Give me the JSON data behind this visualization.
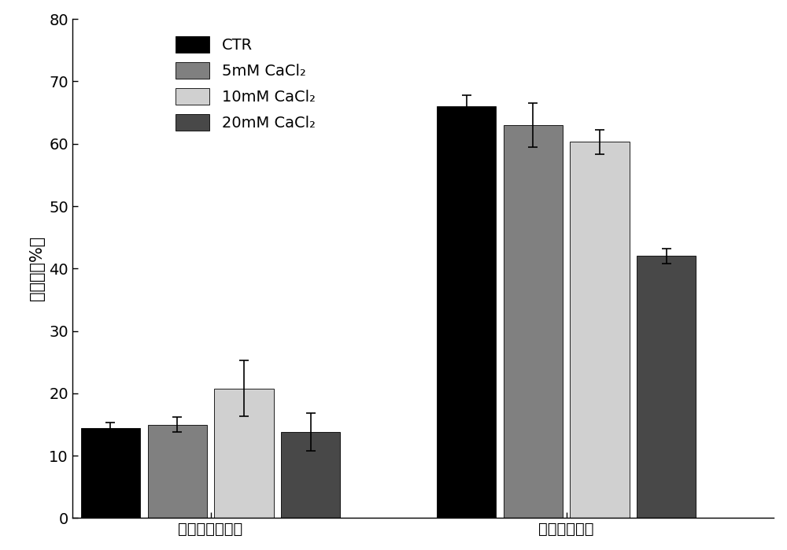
{
  "groups": [
    "未改性绿豆蛋白",
    "改性绿豆蛋白"
  ],
  "series": [
    "CTR",
    "5mM CaCl₂",
    "10mM CaCl₂",
    "20mM CaCl₂"
  ],
  "colors": [
    "#000000",
    "#808080",
    "#d0d0d0",
    "#484848"
  ],
  "values": [
    [
      14.5,
      15.0,
      20.8,
      13.8
    ],
    [
      66.0,
      63.0,
      60.3,
      42.0
    ]
  ],
  "errors": [
    [
      0.8,
      1.2,
      4.5,
      3.0
    ],
    [
      1.8,
      3.5,
      2.0,
      1.2
    ]
  ],
  "ylabel": "溶解度（%）",
  "ylim": [
    0,
    80
  ],
  "yticks": [
    0,
    10,
    20,
    30,
    40,
    50,
    60,
    70,
    80
  ],
  "bar_width": 0.12,
  "legend_labels": [
    "CTR",
    "5mM CaCl₂",
    "10mM CaCl₂",
    "20mM CaCl₂"
  ],
  "background_color": "#ffffff",
  "font_size": 15,
  "tick_font_size": 14,
  "group_centers": [
    0.28,
    1.0
  ],
  "xlim": [
    0.0,
    1.42
  ]
}
